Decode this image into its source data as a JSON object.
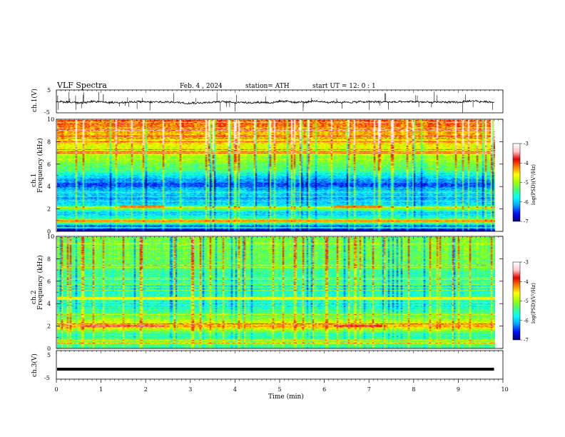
{
  "header": {
    "title": "VLF  Spectra",
    "date": "Feb. 4  , 2024",
    "station": "station= ATH",
    "start_ut": "start  UT  =    12: 0   : 1"
  },
  "colors": {
    "trace": "#000000",
    "colormap": [
      "#000080",
      "#0010ff",
      "#00a0ff",
      "#00ffff",
      "#40ff80",
      "#a0ff00",
      "#ffff00",
      "#ff8000",
      "#e00000",
      "#ffc8c8",
      "#ffffff"
    ]
  },
  "chart_data": [
    {
      "type": "line",
      "name": "ch1-waveform",
      "ylabel": "ch.1(V)",
      "ylim": [
        -5,
        5
      ],
      "yticks": [
        "5",
        "-5"
      ],
      "xlim": [
        0,
        10
      ],
      "baseline": -0.3,
      "noise_band": 0.4,
      "impulsive_spikes_per_min": 5
    },
    {
      "type": "heatmap",
      "name": "ch1-spectrogram",
      "ylabel": "Frequency (kHz)",
      "channel_label": "ch.1",
      "ylim": [
        0,
        10
      ],
      "xlim": [
        0,
        9.8
      ],
      "yticks": [
        "0",
        "2",
        "4",
        "6",
        "8",
        "10"
      ],
      "colorbar": {
        "label": "log(PSD)(V²/Hz)",
        "range": [
          -7,
          -3
        ],
        "ticks": [
          "-3",
          "-4",
          "-5",
          "-6",
          "-7"
        ]
      },
      "freq_profile_log_psd": [
        {
          "f": 0.0,
          "v": -7.0
        },
        {
          "f": 0.5,
          "v": -6.2
        },
        {
          "f": 0.9,
          "v": -4.6
        },
        {
          "f": 1.2,
          "v": -5.6
        },
        {
          "f": 1.6,
          "v": -6.1
        },
        {
          "f": 2.0,
          "v": -5.2
        },
        {
          "f": 2.5,
          "v": -6.0
        },
        {
          "f": 3.0,
          "v": -6.1
        },
        {
          "f": 3.5,
          "v": -5.9
        },
        {
          "f": 4.2,
          "v": -6.4
        },
        {
          "f": 4.8,
          "v": -6.0
        },
        {
          "f": 5.5,
          "v": -5.4
        },
        {
          "f": 6.5,
          "v": -5.0
        },
        {
          "f": 7.5,
          "v": -4.7
        },
        {
          "f": 8.5,
          "v": -4.4
        },
        {
          "f": 9.5,
          "v": -4.2
        },
        {
          "f": 10.0,
          "v": -4.1
        }
      ],
      "narrowband_lines": [
        {
          "f": 2.2,
          "v": -4.2,
          "t_start": 1.4,
          "t_end": 2.4
        },
        {
          "f": 2.2,
          "v": -4.2,
          "t_start": 6.2,
          "t_end": 7.3
        },
        {
          "f": 0.9,
          "v": -4.3,
          "t_start": 0,
          "t_end": 9.8
        }
      ]
    },
    {
      "type": "heatmap",
      "name": "ch2-spectrogram",
      "ylabel": "Frequency (kHz)",
      "channel_label": "ch.2",
      "ylim": [
        0,
        10
      ],
      "xlim": [
        0,
        9.8
      ],
      "yticks": [
        "0",
        "2",
        "4",
        "6",
        "8",
        "10"
      ],
      "colorbar": {
        "label": "log(PSD)(V²/Hz)",
        "range": [
          -7,
          -3
        ],
        "ticks": [
          "-3",
          "-4",
          "-5",
          "-6",
          "-7"
        ]
      },
      "freq_profile_log_psd": [
        {
          "f": 0.0,
          "v": -5.6
        },
        {
          "f": 0.5,
          "v": -5.0
        },
        {
          "f": 1.0,
          "v": -5.6
        },
        {
          "f": 1.5,
          "v": -5.3
        },
        {
          "f": 2.0,
          "v": -4.3
        },
        {
          "f": 2.6,
          "v": -5.0
        },
        {
          "f": 3.2,
          "v": -5.4
        },
        {
          "f": 4.0,
          "v": -5.8
        },
        {
          "f": 4.6,
          "v": -5.5
        },
        {
          "f": 5.5,
          "v": -5.7
        },
        {
          "f": 6.5,
          "v": -5.5
        },
        {
          "f": 7.5,
          "v": -5.3
        },
        {
          "f": 8.5,
          "v": -5.2
        },
        {
          "f": 10.0,
          "v": -5.2
        }
      ],
      "narrowband_lines": [
        {
          "f": 2.0,
          "v": -3.6,
          "t_start": 0.5,
          "t_end": 2.4
        },
        {
          "f": 2.0,
          "v": -3.7,
          "t_start": 6.2,
          "t_end": 7.3
        },
        {
          "f": 4.5,
          "v": -4.6,
          "t_start": 0,
          "t_end": 9.8
        }
      ]
    },
    {
      "type": "line",
      "name": "ch3-waveform",
      "ylabel": "ch.3(V)",
      "ylim": [
        -5,
        5
      ],
      "yticks": [
        "5",
        "-5"
      ],
      "xlim": [
        0,
        10
      ],
      "baseline": -1.5,
      "noise_band": 0.2
    }
  ],
  "x_axis": {
    "label": "Time  (min)",
    "range": [
      0,
      10
    ],
    "ticks": [
      "0",
      "1",
      "2",
      "3",
      "4",
      "5",
      "6",
      "7",
      "8",
      "9",
      "10"
    ]
  }
}
